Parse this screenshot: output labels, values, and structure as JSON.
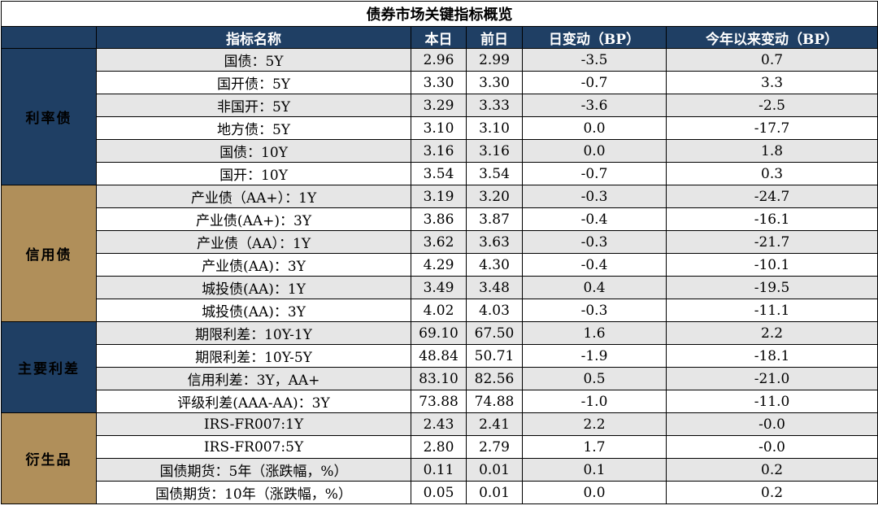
{
  "title": "债券市场关键指标概览",
  "headers": {
    "blank": "",
    "name": "指标名称",
    "today": "本日",
    "prev": "前日",
    "day_change": "日变动（BP）",
    "ytd_change": "今年以来变动（BP）"
  },
  "colors": {
    "header_bg": "#1f3f64",
    "group_navy": "#1f3f64",
    "group_gold": "#b08f5a",
    "negative": "#ff0000",
    "row_shade": "#e6e6e6"
  },
  "groups": [
    {
      "label": "利率债",
      "color": "#1f3f64",
      "rows": [
        {
          "name": "国债：5Y",
          "today": "2.96",
          "prev": "2.99",
          "day": "-3.5",
          "ytd": "0.7"
        },
        {
          "name": "国开债：5Y",
          "today": "3.30",
          "prev": "3.30",
          "day": "-0.7",
          "ytd": "3.3"
        },
        {
          "name": "非国开：5Y",
          "today": "3.29",
          "prev": "3.33",
          "day": "-3.6",
          "ytd": "-2.5"
        },
        {
          "name": "地方债：5Y",
          "today": "3.10",
          "prev": "3.10",
          "day": "0.0",
          "ytd": "-17.7"
        },
        {
          "name": "国债：10Y",
          "today": "3.16",
          "prev": "3.16",
          "day": "0.0",
          "ytd": "1.8"
        },
        {
          "name": "国开：10Y",
          "today": "3.54",
          "prev": "3.54",
          "day": "-0.7",
          "ytd": "0.3"
        }
      ]
    },
    {
      "label": "信用债",
      "color": "#b08f5a",
      "rows": [
        {
          "name": "产业债（AA+）：1Y",
          "today": "3.19",
          "prev": "3.20",
          "day": "-0.3",
          "ytd": "-24.7"
        },
        {
          "name": "产业债(AA+)：3Y",
          "today": "3.86",
          "prev": "3.87",
          "day": "-0.4",
          "ytd": "-16.1"
        },
        {
          "name": "产业债（AA）：1Y",
          "today": "3.62",
          "prev": "3.63",
          "day": "-0.3",
          "ytd": "-21.7"
        },
        {
          "name": "产业债(AA)：3Y",
          "today": "4.29",
          "prev": "4.30",
          "day": "-0.4",
          "ytd": "-10.1"
        },
        {
          "name": "城投债(AA)：1Y",
          "today": "3.49",
          "prev": "3.48",
          "day": "0.4",
          "ytd": "-19.5"
        },
        {
          "name": "城投债(AA)：3Y",
          "today": "4.02",
          "prev": "4.03",
          "day": "-0.3",
          "ytd": "-11.1"
        }
      ]
    },
    {
      "label": "主要利差",
      "color": "#1f3f64",
      "rows": [
        {
          "name": "期限利差：10Y-1Y",
          "today": "69.10",
          "prev": "67.50",
          "day": "1.6",
          "ytd": "2.2"
        },
        {
          "name": "期限利差：10Y-5Y",
          "today": "48.84",
          "prev": "50.71",
          "day": "-1.9",
          "ytd": "-18.1"
        },
        {
          "name": "信用利差：3Y，AA+",
          "today": "83.10",
          "prev": "82.56",
          "day": "0.5",
          "ytd": "-21.0"
        },
        {
          "name": "评级利差(AAA-AA)：3Y",
          "today": "73.88",
          "prev": "74.88",
          "day": "-1.0",
          "ytd": "-11.0"
        }
      ]
    },
    {
      "label": "衍生品",
      "color": "#b08f5a",
      "rows": [
        {
          "name": "IRS-FR007:1Y",
          "today": "2.43",
          "prev": "2.41",
          "day": "2.2",
          "ytd": "-0.0"
        },
        {
          "name": "IRS-FR007:5Y",
          "today": "2.80",
          "prev": "2.79",
          "day": "1.7",
          "ytd": "-0.0"
        },
        {
          "name": "国债期货：5年（涨跌幅，%）",
          "today": "0.11",
          "prev": "0.01",
          "day": "0.1",
          "ytd": "0.2"
        },
        {
          "name": "国债期货：10年（涨跌幅，%）",
          "today": "0.05",
          "prev": "0.01",
          "day": "0.0",
          "ytd": "0.2"
        }
      ]
    }
  ]
}
